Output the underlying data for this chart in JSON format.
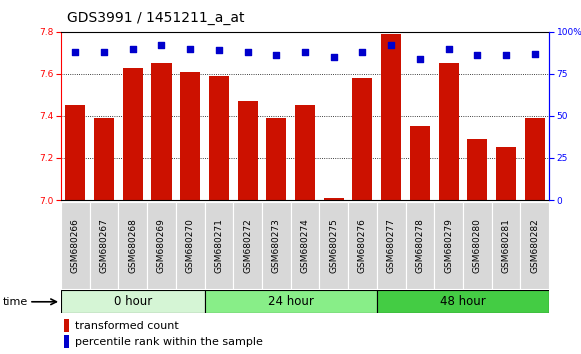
{
  "title": "GDS3991 / 1451211_a_at",
  "samples": [
    "GSM680266",
    "GSM680267",
    "GSM680268",
    "GSM680269",
    "GSM680270",
    "GSM680271",
    "GSM680272",
    "GSM680273",
    "GSM680274",
    "GSM680275",
    "GSM680276",
    "GSM680277",
    "GSM680278",
    "GSM680279",
    "GSM680280",
    "GSM680281",
    "GSM680282"
  ],
  "bar_values": [
    7.45,
    7.39,
    7.63,
    7.65,
    7.61,
    7.59,
    7.47,
    7.39,
    7.45,
    7.01,
    7.58,
    7.79,
    7.35,
    7.65,
    7.29,
    7.25,
    7.39
  ],
  "percentile_values": [
    88,
    88,
    90,
    92,
    90,
    89,
    88,
    86,
    88,
    85,
    88,
    92,
    84,
    90,
    86,
    86,
    87
  ],
  "groups": [
    {
      "label": "0 hour",
      "start": 0,
      "end": 5,
      "color": "#d5f5d5"
    },
    {
      "label": "24 hour",
      "start": 5,
      "end": 11,
      "color": "#88ee88"
    },
    {
      "label": "48 hour",
      "start": 11,
      "end": 17,
      "color": "#44cc44"
    }
  ],
  "ylim_left": [
    7.0,
    7.8
  ],
  "ylim_right": [
    0,
    100
  ],
  "yticks_left": [
    7.0,
    7.2,
    7.4,
    7.6,
    7.8
  ],
  "yticks_right": [
    0,
    25,
    50,
    75,
    100
  ],
  "bar_color": "#cc1100",
  "percentile_color": "#0000cc",
  "bar_bottom": 7.0,
  "background_color": "#ffffff",
  "plot_bg_color": "#ffffff",
  "tick_label_bg": "#d8d8d8",
  "grid_color": "#000000",
  "title_fontsize": 10,
  "tick_fontsize": 6.5,
  "label_fontsize": 8,
  "group_label_fontsize": 8.5,
  "time_label": "time"
}
